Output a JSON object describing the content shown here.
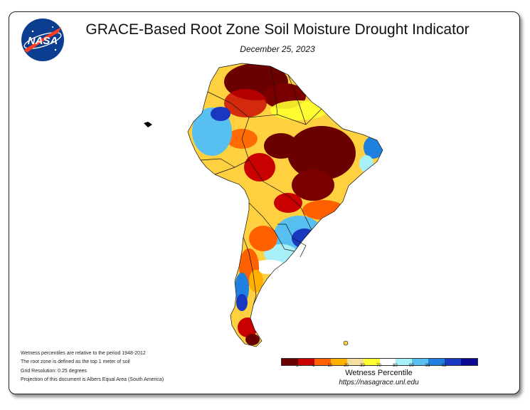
{
  "header": {
    "title": "GRACE-Based Root Zone Soil Moisture Drought Indicator",
    "date": "December 25, 2023"
  },
  "logo": {
    "text": "NASA",
    "icon": "nasa-meatball-logo"
  },
  "notes": [
    "Wetness percentiles are relative to the period 1948-2012",
    "The root zone is defined as the top 1 meter of soil",
    "Grid Resolution: 0.25 degrees",
    "Projection of this document is Albers Equal Area (South America)"
  ],
  "legend": {
    "title": "Wetness Percentile",
    "ticks": [
      "2",
      "5",
      "10",
      "20",
      "30",
      "70",
      "80",
      "90",
      "95",
      "98"
    ],
    "colors": [
      "#6b0000",
      "#c80000",
      "#ff6000",
      "#ffb000",
      "#f5dfa0",
      "#ffff30",
      "#ffffff",
      "#a8f0f8",
      "#58c0f0",
      "#2080e0",
      "#1838c0",
      "#0a0a90"
    ]
  },
  "footer": {
    "url": "https://nasagrace.unl.edu"
  },
  "colors": {
    "extreme_dry": "#6b0000",
    "very_dry": "#c80000",
    "dry": "#ff6000",
    "moderate": "#ffb000",
    "slight": "#ffff30",
    "normal": "#ffffff",
    "wet": "#58c0f0",
    "very_wet": "#1838c0"
  }
}
